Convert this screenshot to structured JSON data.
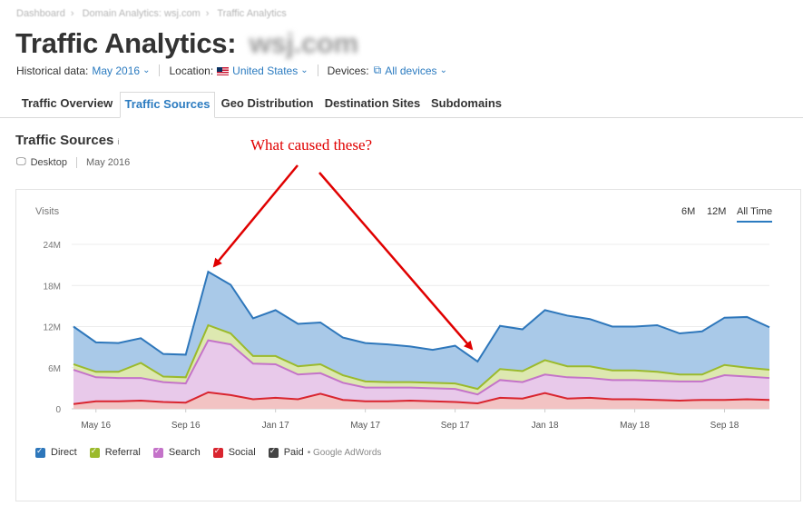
{
  "breadcrumb": [
    "Dashboard",
    "Domain Analytics: wsj.com",
    "Traffic Analytics"
  ],
  "title": {
    "main": "Traffic Analytics:",
    "domain": "wsj.com"
  },
  "filters": {
    "historical_label": "Historical data:",
    "historical_value": "May 2016",
    "location_label": "Location:",
    "location_value": "United States",
    "devices_label": "Devices:",
    "devices_value": "All devices"
  },
  "tabs": [
    "Traffic Overview",
    "Traffic Sources",
    "Geo Distribution",
    "Destination Sites",
    "Subdomains"
  ],
  "active_tab": "Traffic Sources",
  "section": {
    "title": "Traffic Sources",
    "info": "i",
    "device": "Desktop",
    "period": "May 2016"
  },
  "annotation": "What caused these?",
  "time_ranges": {
    "six": "6M",
    "twelve": "12M",
    "all": "All Time",
    "active": "All Time"
  },
  "legend": {
    "direct": "Direct",
    "referral": "Referral",
    "search": "Search",
    "social": "Social",
    "paid": "Paid",
    "paid_sub": "• Google AdWords"
  },
  "colors": {
    "direct": "#2e77bb",
    "referral": "#9bba2c",
    "search": "#c473c9",
    "social": "#d9252f",
    "paid": "#444444",
    "accent": "#2b7bc0",
    "annotation": "#e00000"
  },
  "chart_data": {
    "type": "area",
    "stacked": true,
    "ylabel": "Visits",
    "ytick_labels": [
      "0",
      "6M",
      "12M",
      "18M",
      "24M"
    ],
    "ylim": [
      0,
      24000000
    ],
    "xtick_labels": [
      "May 16",
      "Sep 16",
      "Jan 17",
      "May 17",
      "Sep 17",
      "Jan 18",
      "May 18",
      "Sep 18"
    ],
    "x": [
      "Apr 16",
      "May 16",
      "Jun 16",
      "Jul 16",
      "Aug 16",
      "Sep 16",
      "Oct 16",
      "Nov 16",
      "Dec 16",
      "Jan 17",
      "Feb 17",
      "Mar 17",
      "Apr 17",
      "May 17",
      "Jun 17",
      "Jul 17",
      "Aug 17",
      "Sep 17",
      "Oct 17",
      "Nov 17",
      "Dec 17",
      "Jan 18",
      "Feb 18",
      "Mar 18",
      "Apr 18",
      "May 18",
      "Jun 18",
      "Jul 18",
      "Aug 18",
      "Sep 18",
      "Oct 18",
      "Nov 18"
    ],
    "series": [
      {
        "name": "Social",
        "values": [
          0.7,
          1.1,
          1.1,
          1.2,
          1.0,
          0.9,
          2.4,
          2.0,
          1.4,
          1.6,
          1.4,
          2.2,
          1.3,
          1.1,
          1.1,
          1.2,
          1.1,
          1.0,
          0.8,
          1.6,
          1.5,
          2.3,
          1.5,
          1.6,
          1.4,
          1.4,
          1.3,
          1.2,
          1.3,
          1.3,
          1.4,
          1.3
        ]
      },
      {
        "name": "Search",
        "values": [
          5.0,
          3.5,
          3.4,
          3.3,
          2.9,
          2.8,
          7.6,
          7.4,
          5.2,
          4.9,
          3.6,
          3.0,
          2.5,
          2.0,
          2.0,
          1.9,
          1.9,
          1.9,
          1.3,
          2.6,
          2.4,
          2.7,
          3.1,
          2.9,
          2.8,
          2.8,
          2.8,
          2.8,
          2.7,
          3.6,
          3.3,
          3.2
        ]
      },
      {
        "name": "Referral",
        "values": [
          0.8,
          0.8,
          0.9,
          2.2,
          0.8,
          0.9,
          2.2,
          1.6,
          1.1,
          1.2,
          1.2,
          1.3,
          1.1,
          0.9,
          0.8,
          0.8,
          0.8,
          0.8,
          0.8,
          1.6,
          1.6,
          2.1,
          1.6,
          1.7,
          1.4,
          1.4,
          1.3,
          1.0,
          1.0,
          1.5,
          1.3,
          1.2
        ]
      },
      {
        "name": "Direct",
        "values": [
          5.5,
          4.3,
          4.2,
          3.6,
          3.3,
          3.3,
          7.8,
          7.1,
          5.5,
          6.7,
          6.2,
          6.1,
          5.5,
          5.6,
          5.5,
          5.2,
          4.8,
          5.5,
          4.0,
          6.3,
          6.1,
          7.3,
          7.4,
          6.9,
          6.4,
          6.4,
          6.8,
          6.0,
          6.3,
          6.9,
          7.4,
          6.2
        ]
      }
    ]
  }
}
